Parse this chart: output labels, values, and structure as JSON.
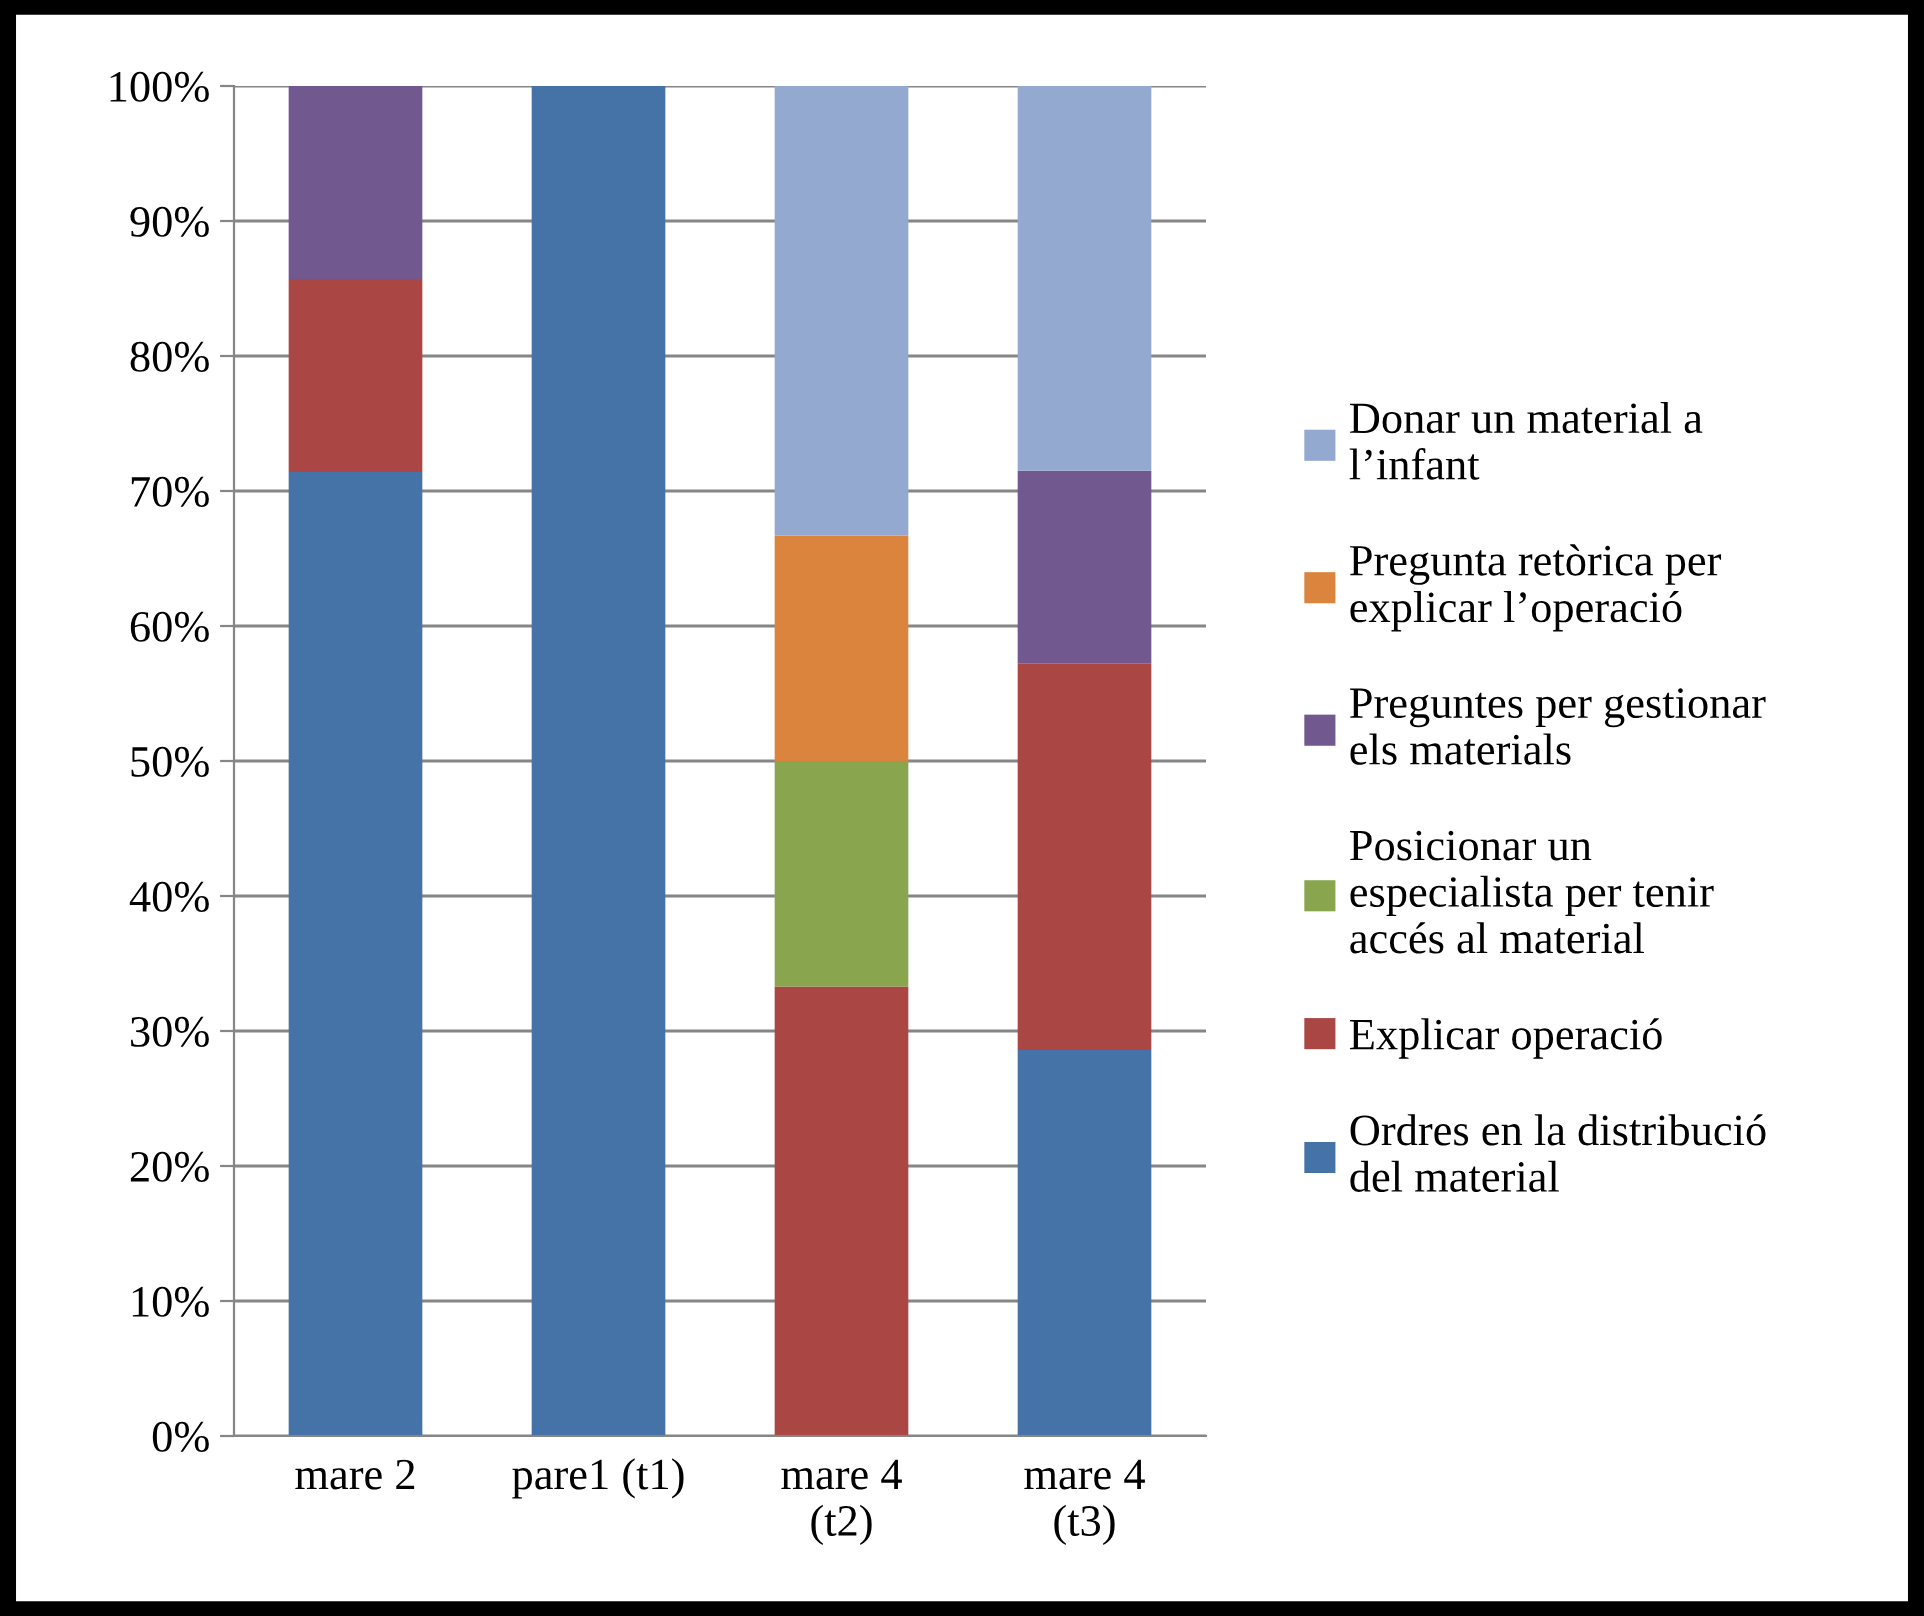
{
  "chart_data": {
    "type": "bar",
    "stacked": true,
    "categories": [
      "mare 2",
      "pare1 (t1)",
      "mare 4\n(t2)",
      "mare 4\n(t3)"
    ],
    "series": [
      {
        "name": "Ordres en la distribució del material",
        "color": "#4572a7",
        "values": [
          71.4,
          100,
          0,
          28.6
        ]
      },
      {
        "name": "Explicar operació",
        "color": "#aa4643",
        "values": [
          14.3,
          0,
          33.3,
          28.6
        ]
      },
      {
        "name": "Posicionar un especialista per tenir accés al material",
        "color": "#89a54e",
        "values": [
          0,
          0,
          16.7,
          0
        ]
      },
      {
        "name": "Preguntes per gestionar els materials",
        "color": "#71588f",
        "values": [
          14.3,
          0,
          0,
          14.3
        ]
      },
      {
        "name": "Pregunta retòrica per explicar l’operació",
        "color": "#db843d",
        "values": [
          0,
          0,
          16.7,
          0
        ]
      },
      {
        "name": "Donar un material a l’infant",
        "color": "#93a9cf",
        "values": [
          0,
          0,
          33.3,
          28.6
        ]
      }
    ],
    "ylim": [
      0,
      100
    ],
    "yticks": [
      {
        "value": 0,
        "label": "0%"
      },
      {
        "value": 10,
        "label": "10%"
      },
      {
        "value": 20,
        "label": "20%"
      },
      {
        "value": 30,
        "label": "30%"
      },
      {
        "value": 40,
        "label": "40%"
      },
      {
        "value": 50,
        "label": "50%"
      },
      {
        "value": 60,
        "label": "60%"
      },
      {
        "value": 70,
        "label": "70%"
      },
      {
        "value": 80,
        "label": "80%"
      },
      {
        "value": 90,
        "label": "90%"
      },
      {
        "value": 100,
        "label": "100%"
      }
    ],
    "grid": "y",
    "legend": "right"
  }
}
